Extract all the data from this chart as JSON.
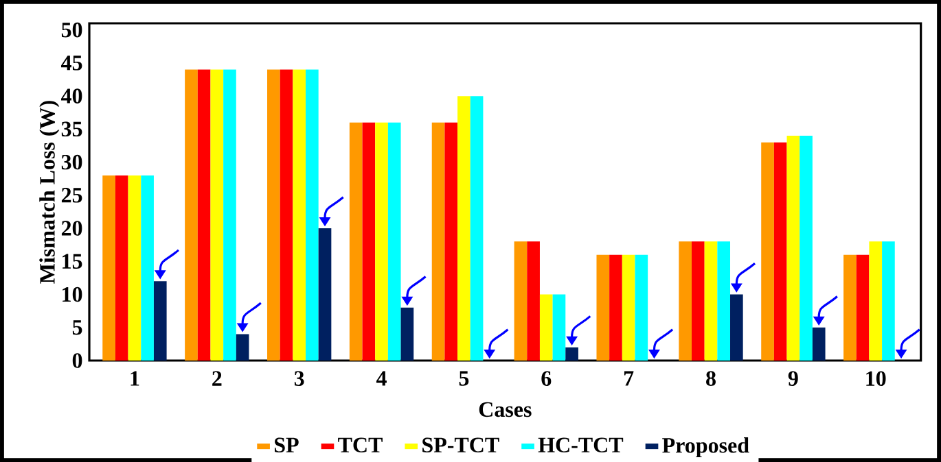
{
  "chart_data": {
    "type": "bar",
    "xlabel": "Cases",
    "ylabel": "Mismatch Loss (W)",
    "categories": [
      "1",
      "2",
      "3",
      "4",
      "5",
      "6",
      "7",
      "8",
      "9",
      "10"
    ],
    "series": [
      {
        "name": "SP",
        "color": "#ff9900",
        "values": [
          28,
          44,
          44,
          36,
          36,
          18,
          16,
          18,
          33,
          16
        ]
      },
      {
        "name": "TCT",
        "color": "#ff0000",
        "values": [
          28,
          44,
          44,
          36,
          36,
          18,
          16,
          18,
          33,
          16
        ]
      },
      {
        "name": "SP-TCT",
        "color": "#ffff00",
        "values": [
          28,
          44,
          44,
          36,
          40,
          10,
          16,
          18,
          34,
          18
        ]
      },
      {
        "name": "HC-TCT",
        "color": "#00ffff",
        "values": [
          28,
          44,
          44,
          36,
          40,
          10,
          16,
          18,
          34,
          18
        ]
      },
      {
        "name": "Proposed",
        "color": "#002060",
        "values": [
          12,
          4,
          20,
          8,
          0,
          2,
          0,
          10,
          5,
          0
        ]
      }
    ],
    "ylim": [
      0,
      51
    ],
    "yticks": [
      0,
      5,
      10,
      15,
      20,
      25,
      30,
      35,
      40,
      45,
      50
    ],
    "grid": false,
    "legend": "bottom"
  }
}
